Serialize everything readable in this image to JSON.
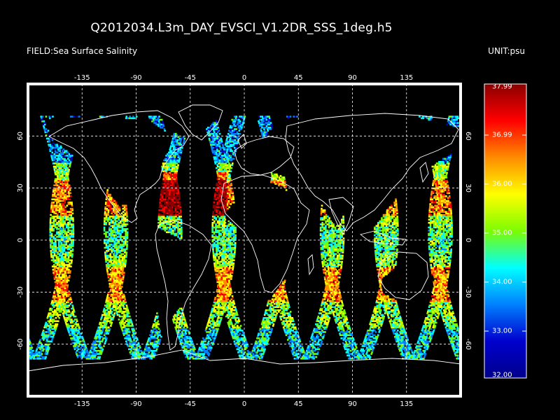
{
  "header": {
    "title": "Q2012034.L3m_DAY_EVSCI_V1.2DR_SSS_1deg.h5",
    "field": "FIELD:Sea Surface Salinity",
    "unit": "UNIT:psu"
  },
  "axes": {
    "lon_ticks": [
      "-135",
      "-90",
      "-45",
      "0",
      "45",
      "90",
      "135"
    ],
    "lat_ticks": [
      "60",
      "30",
      "0",
      "-30",
      "-60"
    ]
  },
  "colorbar": {
    "labels": [
      "37.99",
      "36.99",
      "36.00",
      "35.00",
      "34.00",
      "33.00",
      "32.00"
    ],
    "stops": [
      "#8b0000",
      "#ff0000",
      "#ff8c00",
      "#ffff00",
      "#7cfc00",
      "#00ffff",
      "#0080ff",
      "#0000cd",
      "#00008b"
    ]
  },
  "colors": {
    "background": "#000000",
    "frame": "#ffffff",
    "grid": "#ffffff"
  }
}
